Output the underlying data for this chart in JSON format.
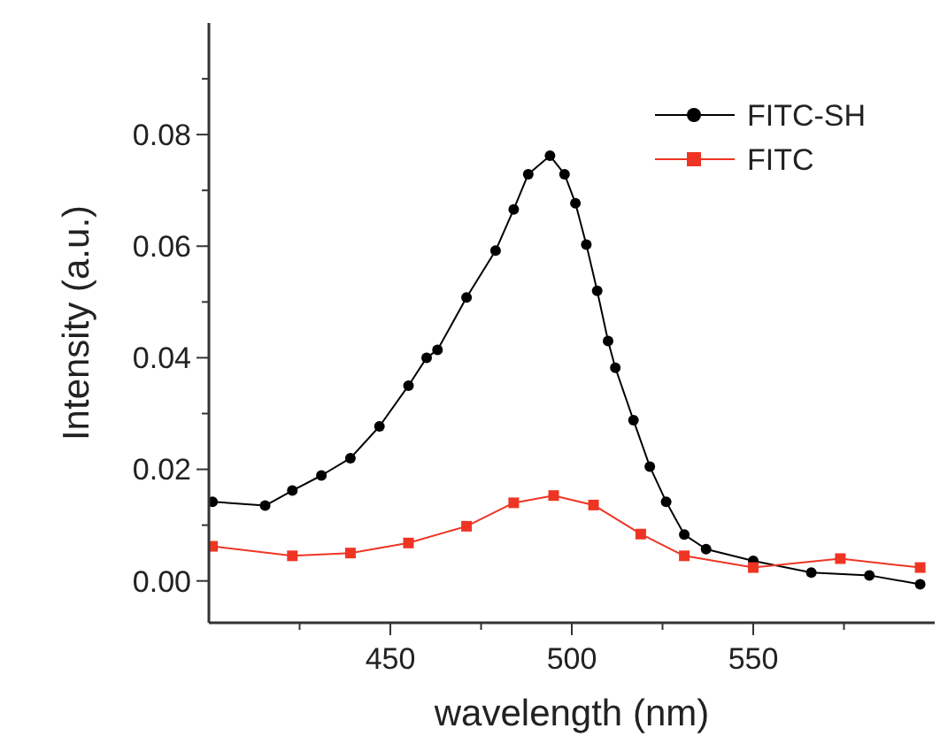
{
  "chart_data": {
    "type": "line",
    "xlabel": "wavelength (nm)",
    "ylabel": "Intensity (a.u.)",
    "xlim": [
      400,
      600
    ],
    "ylim": [
      -0.0075,
      0.1
    ],
    "xticks": [
      {
        "value": 425,
        "label": null
      },
      450,
      {
        "value": 475,
        "label": null
      },
      500,
      {
        "value": 525,
        "label": null
      },
      550,
      {
        "value": 575,
        "label": null
      }
    ],
    "yticks": [
      {
        "value": 0,
        "label": "0.00"
      },
      {
        "value": 0.01,
        "label": null
      },
      0.02,
      {
        "value": 0.03,
        "label": null
      },
      0.04,
      {
        "value": 0.05,
        "label": null
      },
      0.06,
      {
        "value": 0.07,
        "label": null
      },
      0.08,
      {
        "value": 0.09,
        "label": null
      }
    ],
    "legend": "top right",
    "grid": false,
    "series": [
      {
        "name": "FITC-SH",
        "color": "#000000",
        "marker": "circle",
        "x": [
          401,
          415.5,
          423,
          431,
          439,
          447,
          455,
          460,
          463,
          471,
          479,
          484,
          488,
          494,
          498,
          501,
          504,
          507,
          510,
          512,
          517,
          521.5,
          526,
          531,
          537,
          550,
          566,
          582,
          596
        ],
        "values": [
          0.0142,
          0.0135,
          0.0162,
          0.0189,
          0.022,
          0.0277,
          0.035,
          0.04,
          0.0414,
          0.0508,
          0.0592,
          0.0666,
          0.0729,
          0.0762,
          0.0729,
          0.0677,
          0.0603,
          0.052,
          0.043,
          0.0382,
          0.0288,
          0.0205,
          0.0142,
          0.0083,
          0.0057,
          0.0036,
          0.0015,
          0.001,
          -0.0006
        ]
      },
      {
        "name": "FITC",
        "color": "#ee3524",
        "marker": "square",
        "x": [
          401,
          423,
          439,
          455,
          471,
          484,
          495,
          506,
          519,
          531,
          550,
          574,
          596
        ],
        "values": [
          0.0062,
          0.0045,
          0.005,
          0.0068,
          0.0098,
          0.014,
          0.0153,
          0.0136,
          0.0084,
          0.0045,
          0.0024,
          0.004,
          0.0024
        ]
      }
    ]
  }
}
